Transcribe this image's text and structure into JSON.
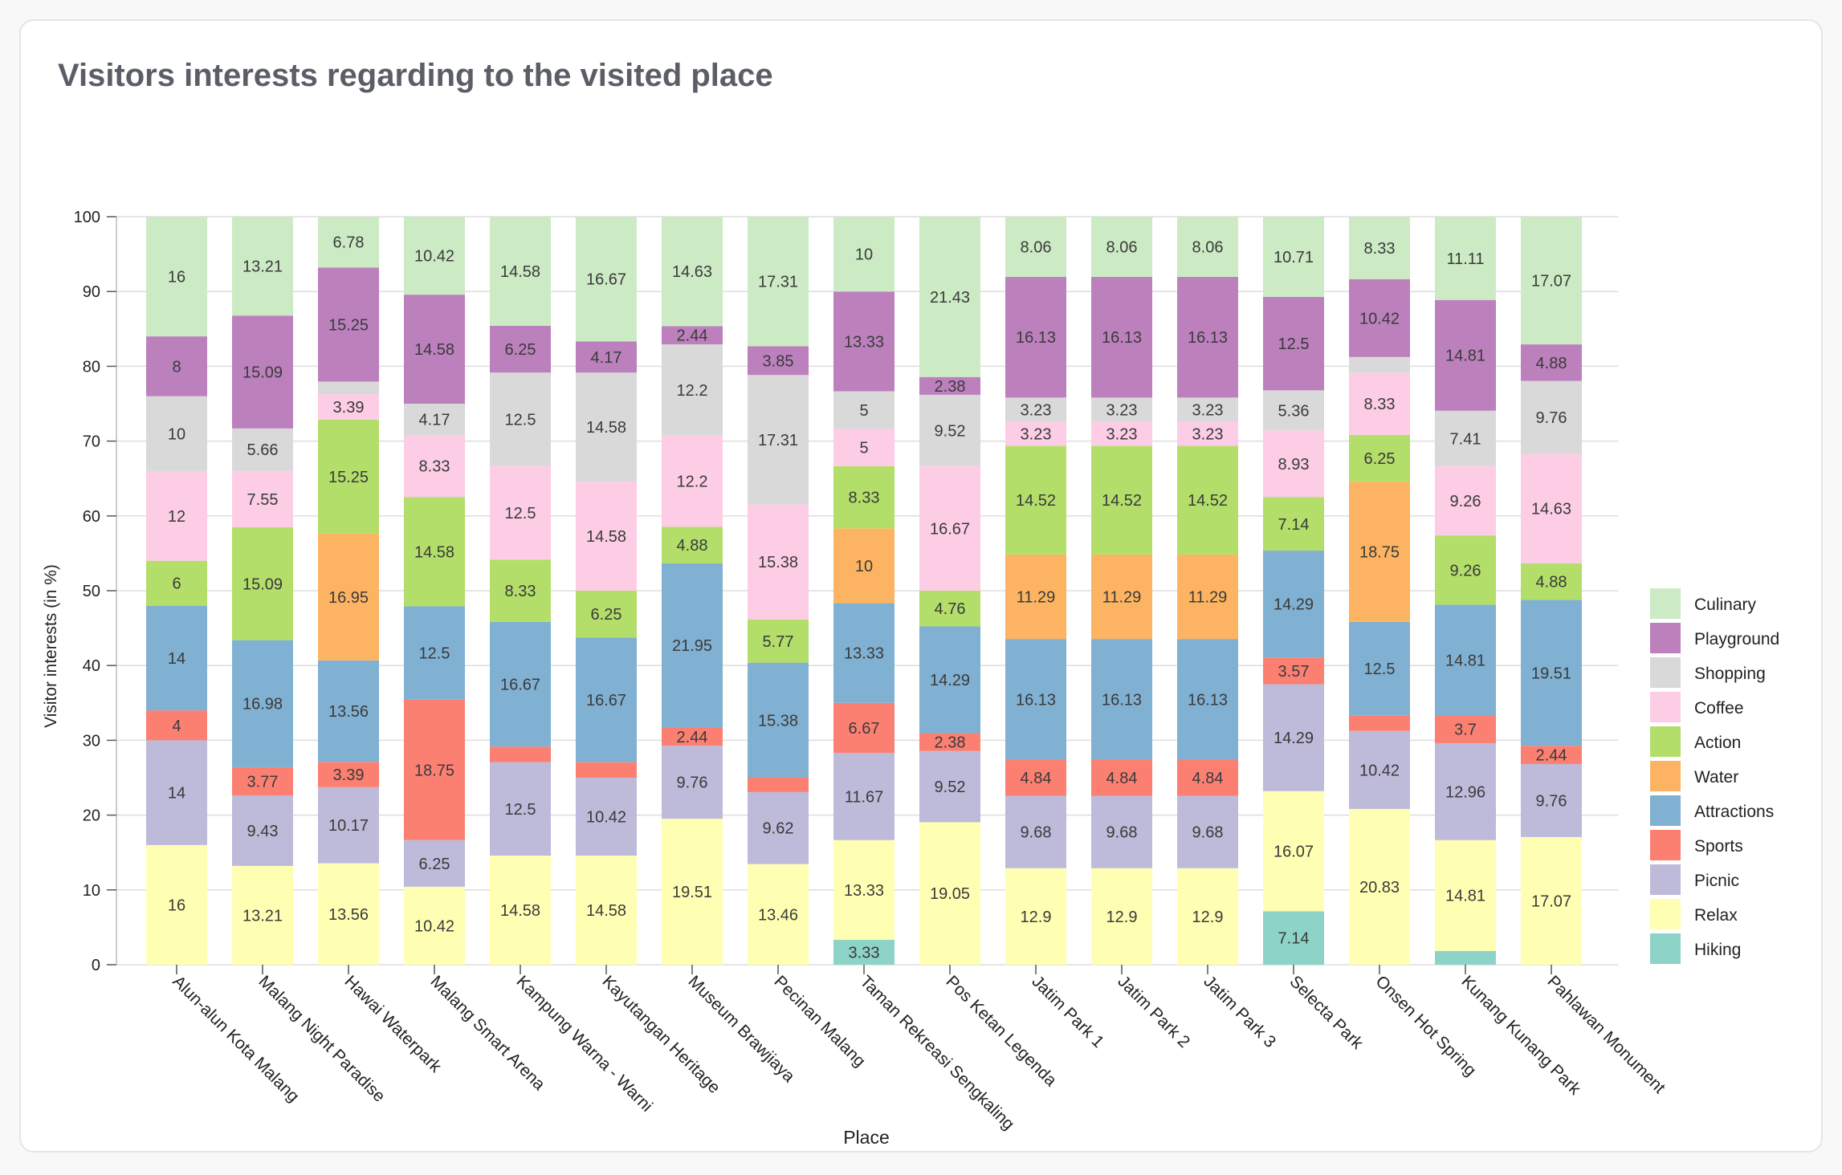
{
  "title": "Visitors interests regarding to the visited place",
  "chart_data": {
    "type": "bar",
    "stacked": true,
    "title": "Visitors interests regarding to the visited place",
    "xlabel": "Place",
    "ylabel": "Visitor interests (in %)",
    "ylim": [
      0,
      100
    ],
    "yticks": [
      0,
      10,
      20,
      30,
      40,
      50,
      60,
      70,
      80,
      90,
      100
    ],
    "grid": true,
    "legend_position": "right",
    "categories": [
      "Alun-alun Kota Malang",
      "Malang Night Paradise",
      "Hawai Waterpark",
      "Malang Smart Arena",
      "Kampung Warna - Warni",
      "Kayutangan Heritage",
      "Museum Brawjiaya",
      "Pecinan Malang",
      "Taman Rekreasi Sengkaling",
      "Pos Ketan Legenda",
      "Jatim Park 1",
      "Jatim Park 2",
      "Jatim Park 3",
      "Selecta Park",
      "Onsen Hot Spring",
      "Kunang Kunang Park",
      "Pahlawan Monument"
    ],
    "series": [
      {
        "name": "Hiking",
        "color": "#8dd3c7",
        "values": [
          0,
          0,
          0,
          0,
          0,
          0,
          0,
          0,
          3.33,
          0,
          0,
          0,
          0,
          7.14,
          0,
          1.85,
          0
        ]
      },
      {
        "name": "Relax",
        "color": "#ffffb3",
        "values": [
          16,
          13.21,
          13.56,
          10.42,
          14.58,
          14.58,
          19.51,
          13.46,
          13.33,
          19.05,
          12.9,
          12.9,
          12.9,
          16.07,
          20.83,
          14.81,
          17.07
        ]
      },
      {
        "name": "Picnic",
        "color": "#bebada",
        "values": [
          14,
          9.43,
          10.17,
          6.25,
          12.5,
          10.42,
          9.76,
          9.62,
          11.67,
          9.52,
          9.68,
          9.68,
          9.68,
          14.29,
          10.42,
          12.96,
          9.76
        ]
      },
      {
        "name": "Sports",
        "color": "#fb8072",
        "values": [
          4,
          3.77,
          3.39,
          18.75,
          2.08,
          2.08,
          2.44,
          1.92,
          6.67,
          2.38,
          4.84,
          4.84,
          4.84,
          3.57,
          2.08,
          3.7,
          2.44
        ]
      },
      {
        "name": "Attractions",
        "color": "#80b1d3",
        "values": [
          14,
          16.98,
          13.56,
          12.5,
          16.67,
          16.67,
          21.95,
          15.38,
          13.33,
          14.29,
          16.13,
          16.13,
          16.13,
          14.29,
          12.5,
          14.81,
          19.51
        ]
      },
      {
        "name": "Water",
        "color": "#fdb462",
        "values": [
          0,
          0,
          16.95,
          0,
          0,
          0,
          0,
          0,
          10,
          0,
          11.29,
          11.29,
          11.29,
          0,
          18.75,
          0,
          0
        ]
      },
      {
        "name": "Action",
        "color": "#b3de69",
        "values": [
          6,
          15.09,
          15.25,
          14.58,
          8.33,
          6.25,
          4.88,
          5.77,
          8.33,
          4.76,
          14.52,
          14.52,
          14.52,
          7.14,
          6.25,
          9.26,
          4.88
        ]
      },
      {
        "name": "Coffee",
        "color": "#fccde5",
        "values": [
          12,
          7.55,
          3.39,
          8.33,
          12.5,
          14.58,
          12.2,
          15.38,
          5,
          16.67,
          3.23,
          3.23,
          3.23,
          8.93,
          8.33,
          9.26,
          14.63
        ]
      },
      {
        "name": "Shopping",
        "color": "#d9d9d9",
        "values": [
          10,
          5.66,
          1.69,
          4.17,
          12.5,
          14.58,
          12.2,
          17.31,
          5,
          9.52,
          3.23,
          3.23,
          3.23,
          5.36,
          2.08,
          7.41,
          9.76
        ]
      },
      {
        "name": "Playground",
        "color": "#bc80bd",
        "values": [
          8,
          15.09,
          15.25,
          14.58,
          6.25,
          4.17,
          2.44,
          3.85,
          13.33,
          2.38,
          16.13,
          16.13,
          16.13,
          12.5,
          10.42,
          14.81,
          4.88
        ]
      },
      {
        "name": "Culinary",
        "color": "#ccebc5",
        "values": [
          16,
          13.21,
          6.78,
          10.42,
          14.58,
          16.67,
          14.63,
          17.31,
          10,
          21.43,
          8.06,
          8.06,
          8.06,
          10.71,
          8.33,
          11.11,
          17.07
        ]
      }
    ],
    "legend_order": [
      "Culinary",
      "Playground",
      "Shopping",
      "Coffee",
      "Action",
      "Water",
      "Attractions",
      "Sports",
      "Picnic",
      "Relax",
      "Hiking"
    ],
    "label_threshold": 2.3
  }
}
